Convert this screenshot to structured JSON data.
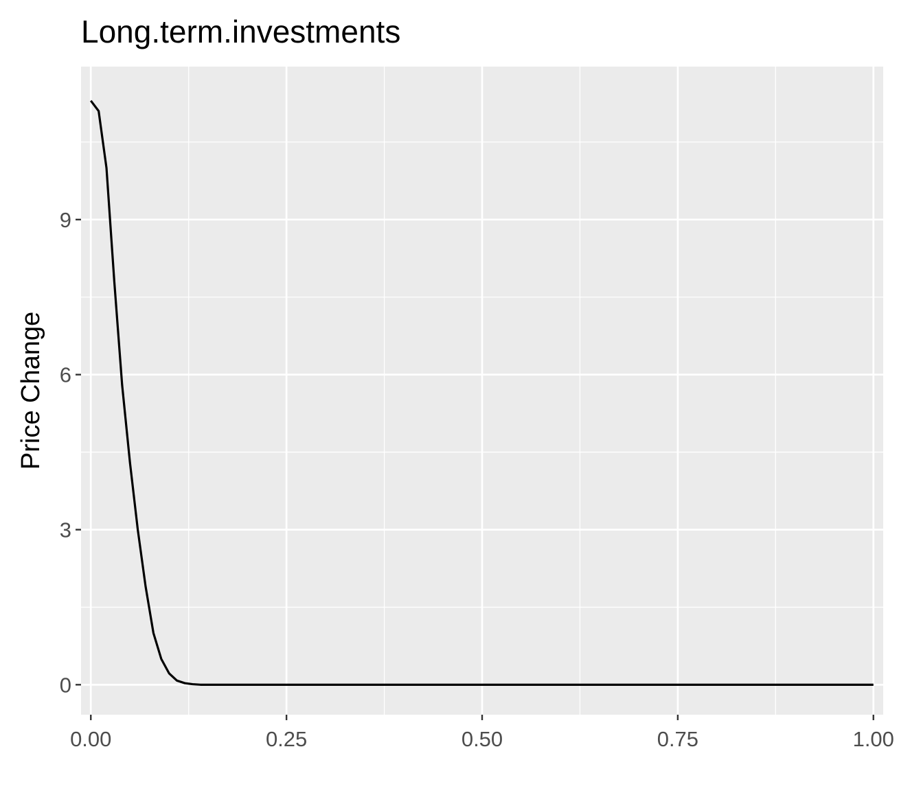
{
  "chart_data": {
    "type": "line",
    "title": "Long.term.investments",
    "xlabel": "",
    "ylabel": "Price Change",
    "xlim": [
      -0.0125,
      1.0125
    ],
    "ylim": [
      -0.58,
      11.96
    ],
    "x_ticks": [
      0.0,
      0.25,
      0.5,
      0.75,
      1.0
    ],
    "x_tick_labels": [
      "0.00",
      "0.25",
      "0.50",
      "0.75",
      "1.00"
    ],
    "y_ticks": [
      0,
      3,
      6,
      9
    ],
    "y_tick_labels": [
      "0",
      "3",
      "6",
      "9"
    ],
    "grid": true,
    "legend": "none",
    "series": [
      {
        "color": "#000000",
        "x": [
          0.0,
          0.01,
          0.02,
          0.03,
          0.04,
          0.05,
          0.06,
          0.07,
          0.08,
          0.09,
          0.1,
          0.11,
          0.12,
          0.13,
          0.14,
          0.15,
          0.2,
          0.25,
          0.3,
          0.4,
          0.5,
          0.6,
          0.7,
          0.75,
          0.8,
          0.9,
          1.0
        ],
        "y": [
          11.3,
          11.1,
          10.0,
          7.8,
          5.8,
          4.3,
          3.0,
          1.9,
          1.0,
          0.5,
          0.22,
          0.08,
          0.03,
          0.01,
          0.0,
          0.0,
          0.0,
          0.0,
          0.0,
          0.0,
          0.0,
          0.0,
          0.0,
          0.0,
          0.0,
          0.0,
          0.0
        ]
      }
    ]
  }
}
